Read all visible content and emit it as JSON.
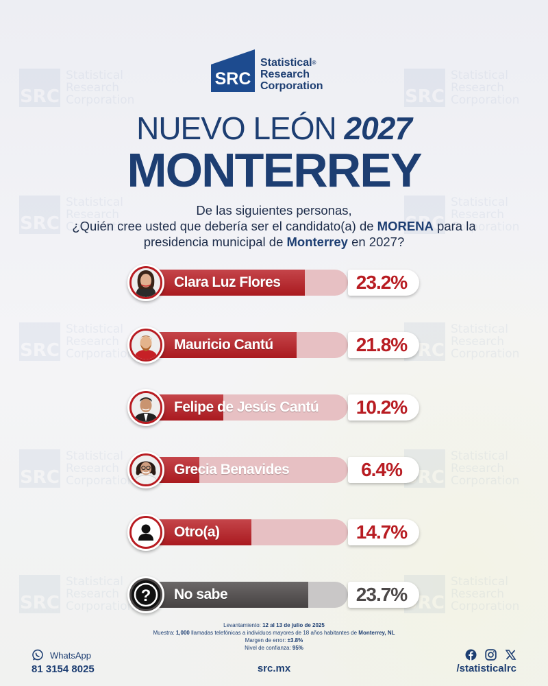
{
  "brand": {
    "logo_mark": "SRC",
    "line1": "Statistical",
    "line2": "Research",
    "line3": "Corporation",
    "reg": "®",
    "blue": "#1d3e72"
  },
  "heading": {
    "state": "NUEVO LEÓN",
    "year": "2027",
    "city": "MONTERREY"
  },
  "question": {
    "line1": "De las siguientes personas,",
    "line2_a": "¿Quién cree usted que debería ser el candidato(a) de",
    "line2_b": "MORENA",
    "line2_c": "para la",
    "line3_a": "presidencia municipal de",
    "line3_b": "Monterrey",
    "line3_c": "en 2027?"
  },
  "chart_data": {
    "type": "bar",
    "orientation": "horizontal",
    "categories": [
      "Clara Luz Flores",
      "Mauricio Cantú",
      "Felipe de Jesús Cantú",
      "Grecia Benavides",
      "Otro(a)",
      "No sabe"
    ],
    "values": [
      23.2,
      21.8,
      10.2,
      6.4,
      14.7,
      23.7
    ],
    "labels": [
      "23.2%",
      "21.8%",
      "10.2%",
      "6.4%",
      "14.7%",
      "23.7%"
    ],
    "unit": "%",
    "xlim": [
      0,
      30
    ],
    "colors": {
      "fill": "#b81c22",
      "track": "#e7c0c3",
      "nosabe_fill": "#4b4747",
      "nosabe_track": "#c9c7c7"
    }
  },
  "rows": [
    {
      "name": "Clara Luz Flores",
      "pct": "23.2%",
      "avatar": "photo-woman-icon"
    },
    {
      "name": "Mauricio Cantú",
      "pct": "21.8%",
      "avatar": "photo-man-icon"
    },
    {
      "name": "Felipe de Jesús Cantú",
      "pct": "10.2%",
      "avatar": "photo-man-icon"
    },
    {
      "name": "Grecia Benavides",
      "pct": "6.4%",
      "avatar": "photo-woman-glasses-icon"
    },
    {
      "name": "Otro(a)",
      "pct": "14.7%",
      "avatar": "person-silhouette-icon"
    },
    {
      "name": "No sabe",
      "pct": "23.7%",
      "avatar": "question-mark-icon"
    }
  ],
  "methodology": {
    "l1_label": "Levantamiento:",
    "l1_value": "12 al 13 de julio de 2025",
    "l2_label": "Muestra:",
    "l2_a": "1,000",
    "l2_b": "llamadas telefónicas a individuos mayores de 18 años habitantes de",
    "l2_c": "Monterrey, NL",
    "l3_label": "Margen de error:",
    "l3_value": "±3.8%",
    "l4_label": "Nivel de confianza:",
    "l4_value": "95%"
  },
  "footer": {
    "whatsapp_label": "WhatsApp",
    "whatsapp_number": "81 3154 8025",
    "website": "src.mx",
    "social_handle": "/statisticalrc",
    "social_icons": [
      "facebook-icon",
      "instagram-icon",
      "x-icon"
    ]
  }
}
